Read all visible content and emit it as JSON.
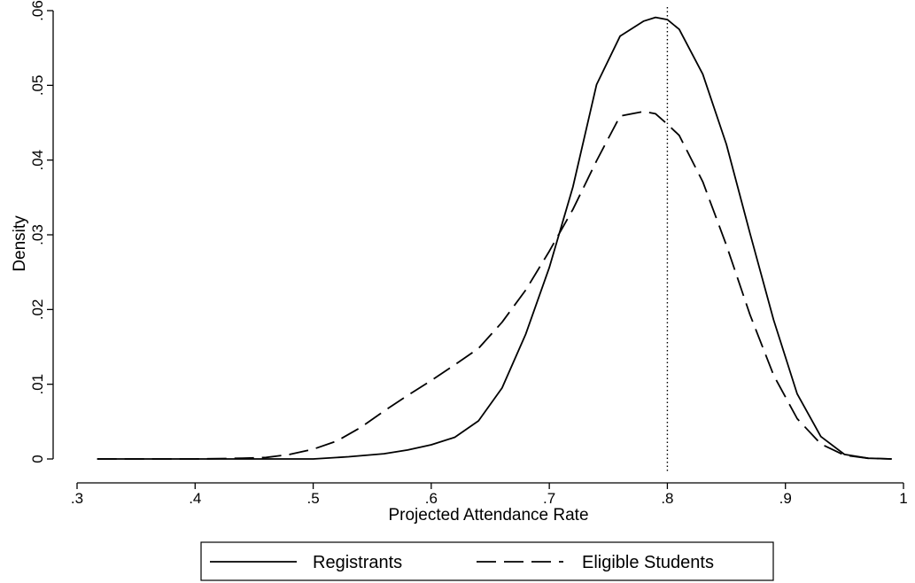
{
  "chart_data": {
    "type": "line",
    "title": "",
    "xlabel": "Projected Attendance Rate",
    "ylabel": "Density",
    "xlim": [
      0.3,
      1.0
    ],
    "ylim": [
      0,
      0.06
    ],
    "x_ticks": [
      ".3",
      ".4",
      ".5",
      ".6",
      ".7",
      ".8",
      ".9",
      "1"
    ],
    "y_ticks": [
      "0",
      ".01",
      ".02",
      ".03",
      ".04",
      ".05",
      ".06"
    ],
    "grid": false,
    "legend_position": "bottom",
    "reference_line": {
      "x": 0.8,
      "style": "dotted"
    },
    "series": [
      {
        "name": "Registrants",
        "style": "solid",
        "color": "#000000",
        "x": [
          0.317,
          0.35,
          0.4,
          0.45,
          0.5,
          0.53,
          0.56,
          0.58,
          0.6,
          0.62,
          0.64,
          0.66,
          0.68,
          0.7,
          0.72,
          0.74,
          0.76,
          0.78,
          0.79,
          0.8,
          0.81,
          0.83,
          0.85,
          0.87,
          0.89,
          0.91,
          0.93,
          0.95,
          0.97,
          0.99
        ],
        "y": [
          0,
          0,
          0,
          0,
          0,
          0.0003,
          0.0007,
          0.0012,
          0.0019,
          0.0029,
          0.0051,
          0.0095,
          0.0167,
          0.0256,
          0.0364,
          0.0501,
          0.0566,
          0.0586,
          0.0591,
          0.0588,
          0.0575,
          0.0515,
          0.0421,
          0.0302,
          0.0186,
          0.0087,
          0.003,
          0.0006,
          0.0001,
          0
        ]
      },
      {
        "name": "Eligible Students",
        "style": "dashed",
        "color": "#000000",
        "x": [
          0.317,
          0.35,
          0.4,
          0.44,
          0.46,
          0.48,
          0.5,
          0.52,
          0.54,
          0.56,
          0.58,
          0.6,
          0.62,
          0.64,
          0.66,
          0.68,
          0.7,
          0.72,
          0.74,
          0.76,
          0.78,
          0.79,
          0.8,
          0.81,
          0.83,
          0.85,
          0.87,
          0.89,
          0.91,
          0.93,
          0.95,
          0.97,
          0.99
        ],
        "y": [
          0,
          0,
          0,
          0.0001,
          0.0002,
          0.0006,
          0.0013,
          0.0024,
          0.0042,
          0.0064,
          0.0085,
          0.0105,
          0.0126,
          0.0148,
          0.0183,
          0.0226,
          0.0278,
          0.0334,
          0.0399,
          0.0459,
          0.0465,
          0.0462,
          0.0448,
          0.0433,
          0.0371,
          0.0286,
          0.0193,
          0.0112,
          0.0054,
          0.002,
          0.0005,
          0.0001,
          0
        ]
      }
    ]
  }
}
